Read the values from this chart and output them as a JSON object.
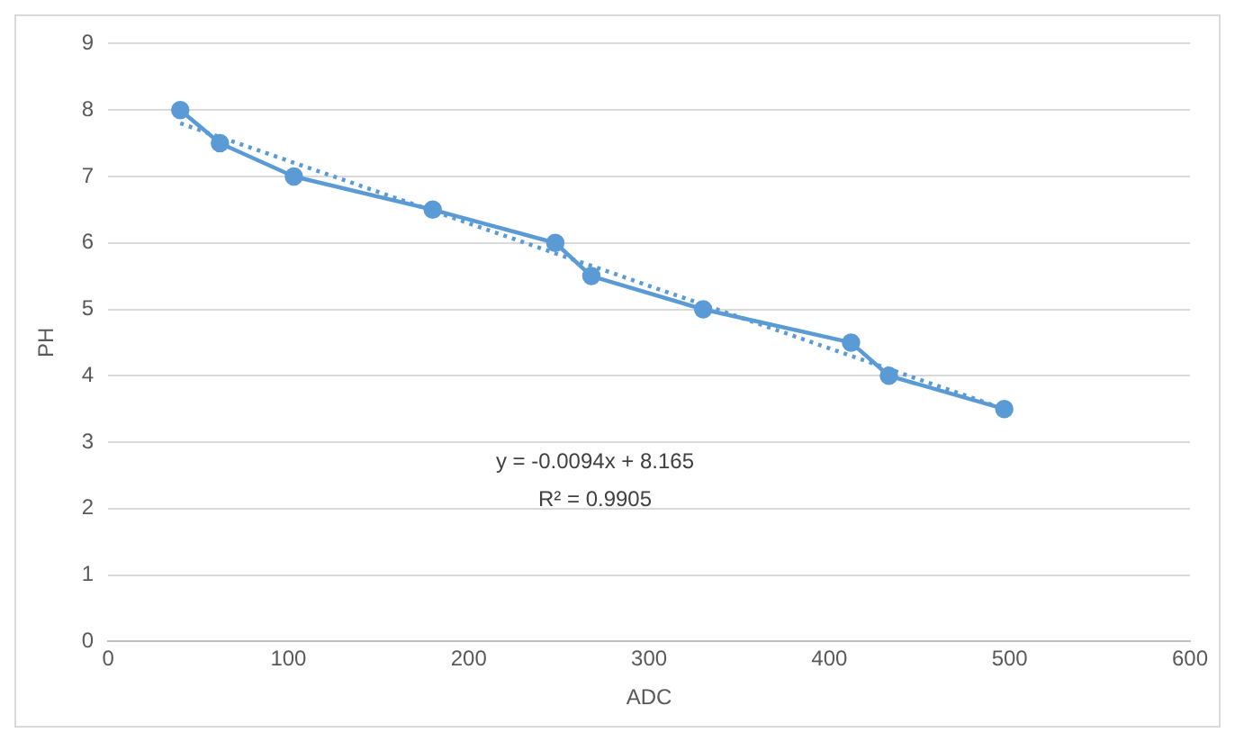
{
  "chart_data": {
    "type": "line",
    "xlabel": "ADC",
    "ylabel": "PH",
    "xlim": [
      0,
      600
    ],
    "xticks": [
      0,
      100,
      200,
      300,
      400,
      500,
      600
    ],
    "ylim": [
      0,
      9
    ],
    "yticks": [
      0,
      1,
      2,
      3,
      4,
      5,
      6,
      7,
      8,
      9
    ],
    "grid": "y",
    "legend": false,
    "marker": "circle",
    "line_style": "solid",
    "x": [
      40,
      62,
      103,
      180,
      248,
      268,
      330,
      412,
      433,
      497
    ],
    "series": [
      {
        "color": "#5b9bd5",
        "values": [
          8,
          7.5,
          7,
          6.5,
          6,
          5.5,
          5,
          4.5,
          4,
          3.5
        ]
      },
      {
        "type": "line",
        "color": "#5b9bd5",
        "x": [
          40,
          497
        ],
        "values": [
          7.8,
          3.5
        ],
        "marker": "none",
        "line_style": "dotted"
      }
    ],
    "annotations": [
      "y = -0.0094x + 8.165",
      "R² = 0.9905"
    ]
  }
}
